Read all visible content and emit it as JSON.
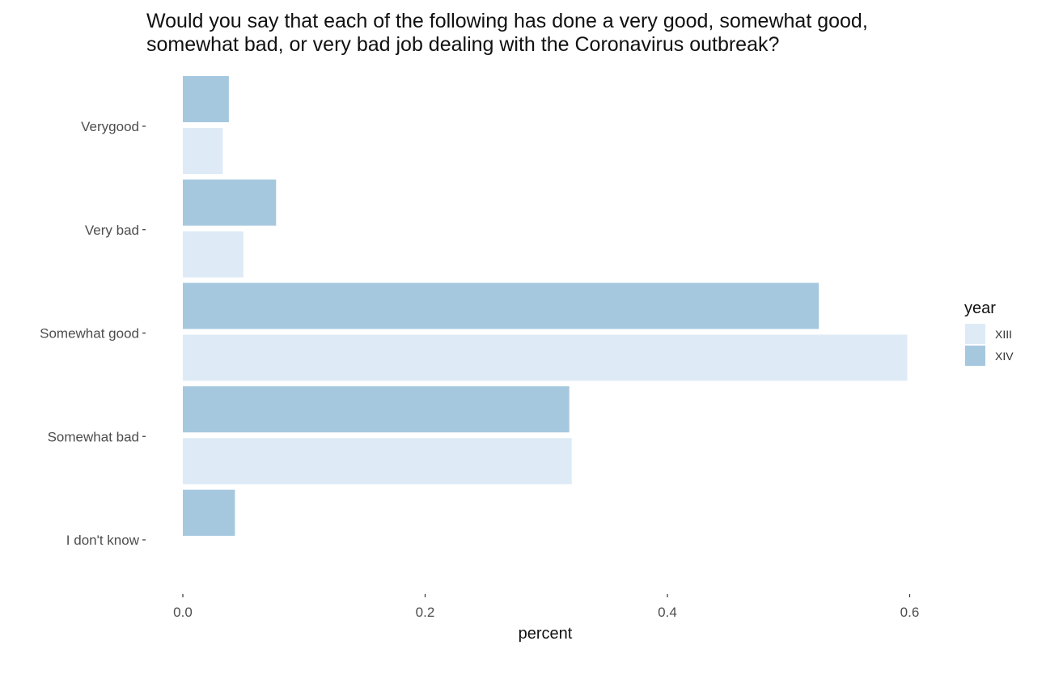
{
  "chart_data": {
    "type": "bar",
    "orientation": "horizontal",
    "title": "Would you say that each of the following has done a very good, somewhat good,\nsomewhat bad, or very bad job dealing with the Coronavirus outbreak?",
    "xlabel": "percent",
    "ylabel": "",
    "categories": [
      "Verygood",
      "Very bad",
      "Somewhat good",
      "Somewhat bad",
      "I don't know"
    ],
    "xlim": [
      -0.088,
      0.665
    ],
    "x_ticks": [
      0.0,
      0.2,
      0.4,
      0.6
    ],
    "x_tick_labels": [
      "0.0",
      "0.2",
      "0.4",
      "0.6"
    ],
    "grid": false,
    "legend": {
      "title": "year",
      "position": "right"
    },
    "series": [
      {
        "name": "XIII",
        "color": "#deebf7",
        "values": [
          0.033,
          0.05,
          0.598,
          0.321,
          null
        ]
      },
      {
        "name": "XIV",
        "color": "#a6c8df",
        "values": [
          0.038,
          0.077,
          0.525,
          0.319,
          0.043
        ]
      }
    ]
  }
}
